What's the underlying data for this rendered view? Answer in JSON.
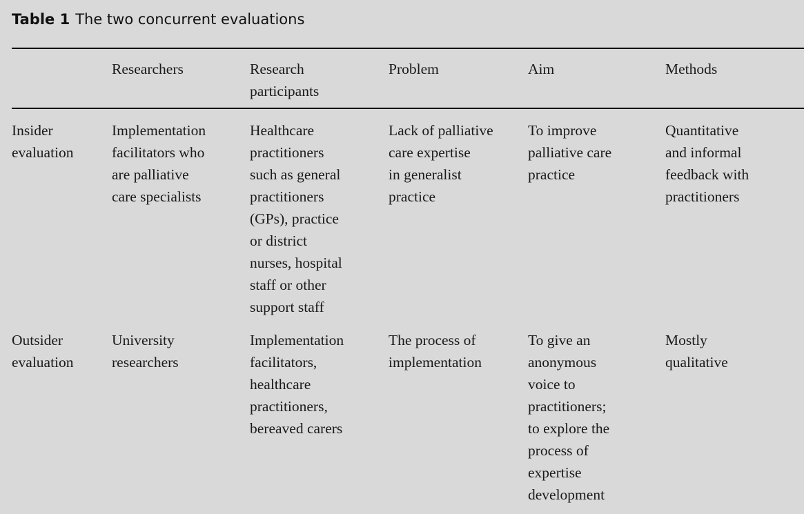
{
  "title": {
    "label": "Table 1",
    "text": "The two concurrent evaluations"
  },
  "table": {
    "headers": [
      "",
      "Researchers",
      "Research\nparticipants",
      "Problem",
      "Aim",
      "Methods"
    ],
    "rows": [
      [
        "Insider\nevaluation",
        "Implementation\nfacilitators who\nare palliative\ncare specialists",
        "Healthcare\npractitioners\nsuch as general\npractitioners\n(GPs), practice\nor district\nnurses, hospital\nstaff or other\nsupport staff",
        "Lack of palliative\ncare expertise\nin generalist\npractice",
        "To improve\npalliative care\npractice",
        "Quantitative\nand informal\nfeedback with\npractitioners"
      ],
      [
        "Outsider\nevaluation",
        "University\nresearchers",
        "Implementation\nfacilitators,\nhealthcare\npractitioners,\nbereaved carers",
        "The process of\nimplementation",
        "To give an\nanonymous\nvoice to\npractitioners;\nto explore the\nprocess of\nexpertise\ndevelopment",
        "Mostly\nqualitative"
      ]
    ]
  }
}
